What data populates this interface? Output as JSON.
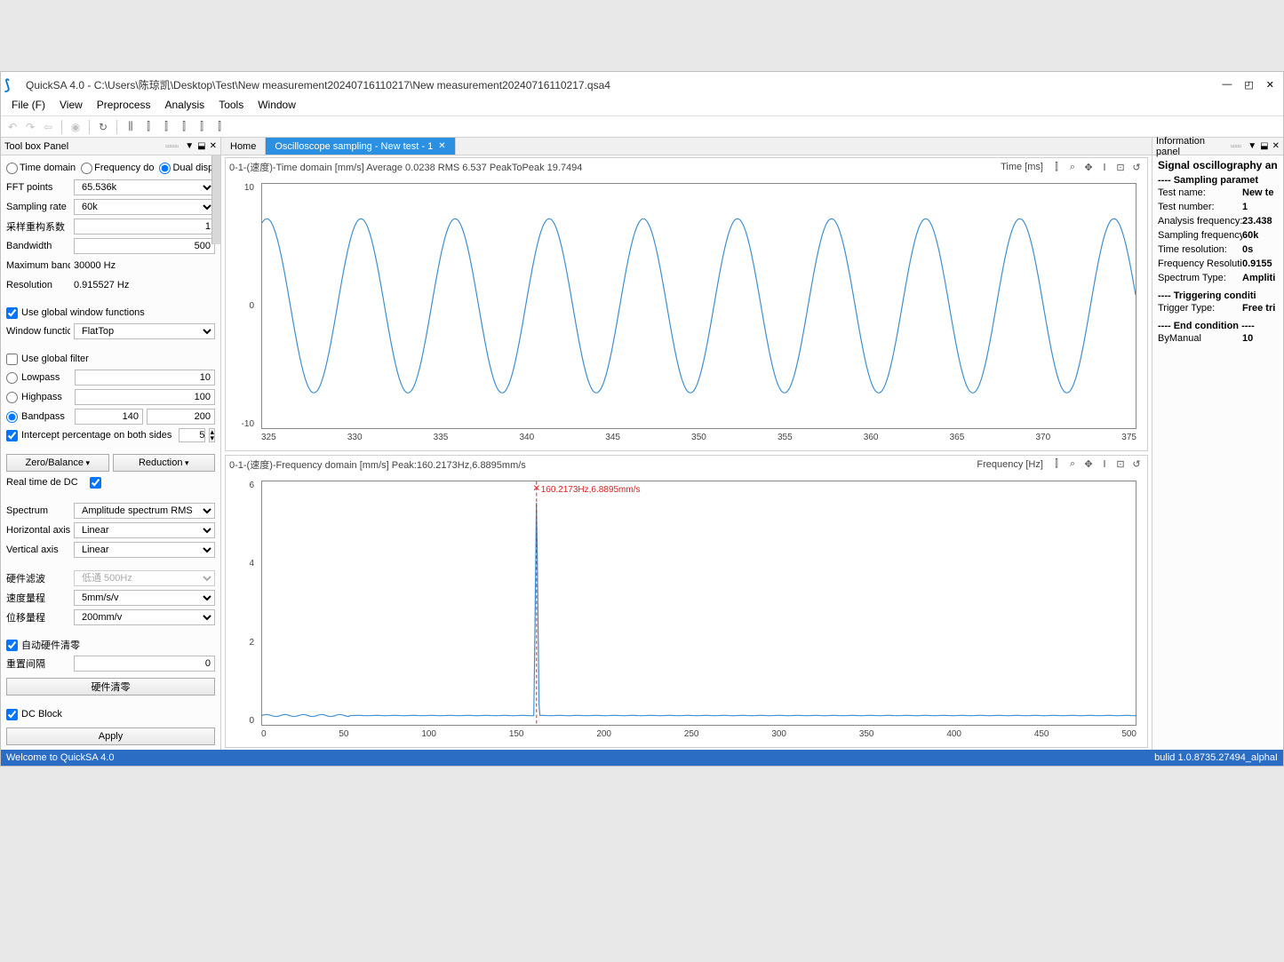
{
  "window": {
    "title": "QuickSA 4.0 - C:\\Users\\陈琼凯\\Desktop\\Test\\New measurement20240716110217\\New measurement20240716110217.qsa4"
  },
  "menu": [
    "File (F)",
    "View",
    "Preprocess",
    "Analysis",
    "Tools",
    "Window"
  ],
  "toolbox": {
    "title": "Tool box Panel",
    "display_mode": {
      "options": [
        "Time domain",
        "Frequency do",
        "Dual display"
      ],
      "selected": "Dual display"
    },
    "fft_points": {
      "label": "FFT points",
      "value": "65.536k"
    },
    "sampling_rate": {
      "label": "Sampling rate",
      "value": "60k"
    },
    "reconstruct_coef": {
      "label": "采样重构系数",
      "value": "1"
    },
    "bandwidth": {
      "label": "Bandwidth",
      "value": "500"
    },
    "max_band": {
      "label": "Maximum banc",
      "value": "30000 Hz"
    },
    "resolution": {
      "label": "Resolution",
      "value": "0.915527 Hz"
    },
    "use_global_window": {
      "label": "Use global window functions",
      "checked": true
    },
    "window_fn": {
      "label": "Window functic",
      "value": "FlatTop"
    },
    "use_global_filter": {
      "label": "Use global filter",
      "checked": false
    },
    "lowpass": {
      "label": "Lowpass",
      "value": "10"
    },
    "highpass": {
      "label": "Highpass",
      "value": "100"
    },
    "bandpass": {
      "label": "Bandpass",
      "value1": "140",
      "value2": "200"
    },
    "intercept": {
      "label": "Intercept percentage on both sides",
      "value": "5"
    },
    "zero_balance": "Zero/Balance",
    "reduction": "Reduction",
    "rt_dc": {
      "label": "Real time de DC",
      "checked": true
    },
    "spectrum": {
      "label": "Spectrum",
      "value": "Amplitude spectrum RMS"
    },
    "h_axis": {
      "label": "Horizontal axis",
      "value": "Linear"
    },
    "v_axis": {
      "label": "Vertical axis",
      "value": "Linear"
    },
    "hw_filter": {
      "label": "硬件滤波",
      "value": "低通 500Hz"
    },
    "vel_range": {
      "label": "速度量程",
      "value": "5mm/s/v"
    },
    "disp_range": {
      "label": "位移量程",
      "value": "200mm/v"
    },
    "auto_hw_zero": {
      "label": "自动硬件清零",
      "checked": true
    },
    "reset_interval": {
      "label": "重置间隔",
      "value": "0"
    },
    "hw_clear": "硬件清零",
    "dc_block": {
      "label": "DC Block",
      "checked": true
    },
    "apply": "Apply"
  },
  "tabs": {
    "home": "Home",
    "active": "Oscilloscope sampling - New test - 1"
  },
  "time_chart": {
    "title_left": "0-1-(速度)-Time domain   [mm/s]   Average 0.0238 RMS 6.537 PeakToPeak 19.7494",
    "title_right": "Time   [ms]",
    "y_ticks": [
      "10",
      "0",
      "-10"
    ],
    "x_ticks": [
      "325",
      "330",
      "335",
      "340",
      "345",
      "350",
      "355",
      "360",
      "365",
      "370",
      "375"
    ],
    "xlim": [
      320,
      378
    ],
    "ylim": [
      -14,
      14
    ],
    "amplitude": 10,
    "freq_hz": 160,
    "x_ms_per_cycle": 6.25,
    "line_color": "#3a8dd0",
    "line_width": 1.2
  },
  "freq_chart": {
    "title_left": "0-1-(速度)-Frequency domain   [mm/s]   Peak:160.2173Hz,6.8895mm/s",
    "title_right": "Frequency   [Hz]",
    "y_ticks": [
      "6",
      "4",
      "2",
      "0"
    ],
    "x_ticks": [
      "0",
      "50",
      "100",
      "150",
      "200",
      "250",
      "300",
      "350",
      "400",
      "450",
      "500"
    ],
    "xlim": [
      0,
      510
    ],
    "ylim": [
      -0.3,
      7.2
    ],
    "peak_x": 160.2173,
    "peak_y": 6.8895,
    "peak_label": "160.2173Hz,6.8895mm/s",
    "line_color": "#3a8dd0",
    "marker_color": "#e02020",
    "line_width": 1.2
  },
  "info": {
    "title": "Information panel",
    "main_title": "Signal oscillography an",
    "sec_sampling": "----  Sampling paramet",
    "rows1": [
      {
        "k": "Test name:",
        "v": "New te"
      },
      {
        "k": "Test number:",
        "v": "1"
      },
      {
        "k": "Analysis frequency:",
        "v": "23.438"
      },
      {
        "k": "Sampling frequency:",
        "v": "60k"
      },
      {
        "k": "Time resolution:",
        "v": "0s"
      },
      {
        "k": "Frequency Resolution:",
        "v": "0.9155"
      },
      {
        "k": "Spectrum Type:",
        "v": "Ampliti"
      }
    ],
    "sec_trig": "----  Triggering conditi",
    "rows2": [
      {
        "k": "Trigger Type:",
        "v": "Free tri"
      }
    ],
    "sec_end": "----  End condition  ----",
    "rows3": [
      {
        "k": "ByManual",
        "v": "10"
      }
    ]
  },
  "status": {
    "left": "Welcome to QuickSA 4.0",
    "right": "bulid 1.0.8735.27494_alphaI"
  }
}
